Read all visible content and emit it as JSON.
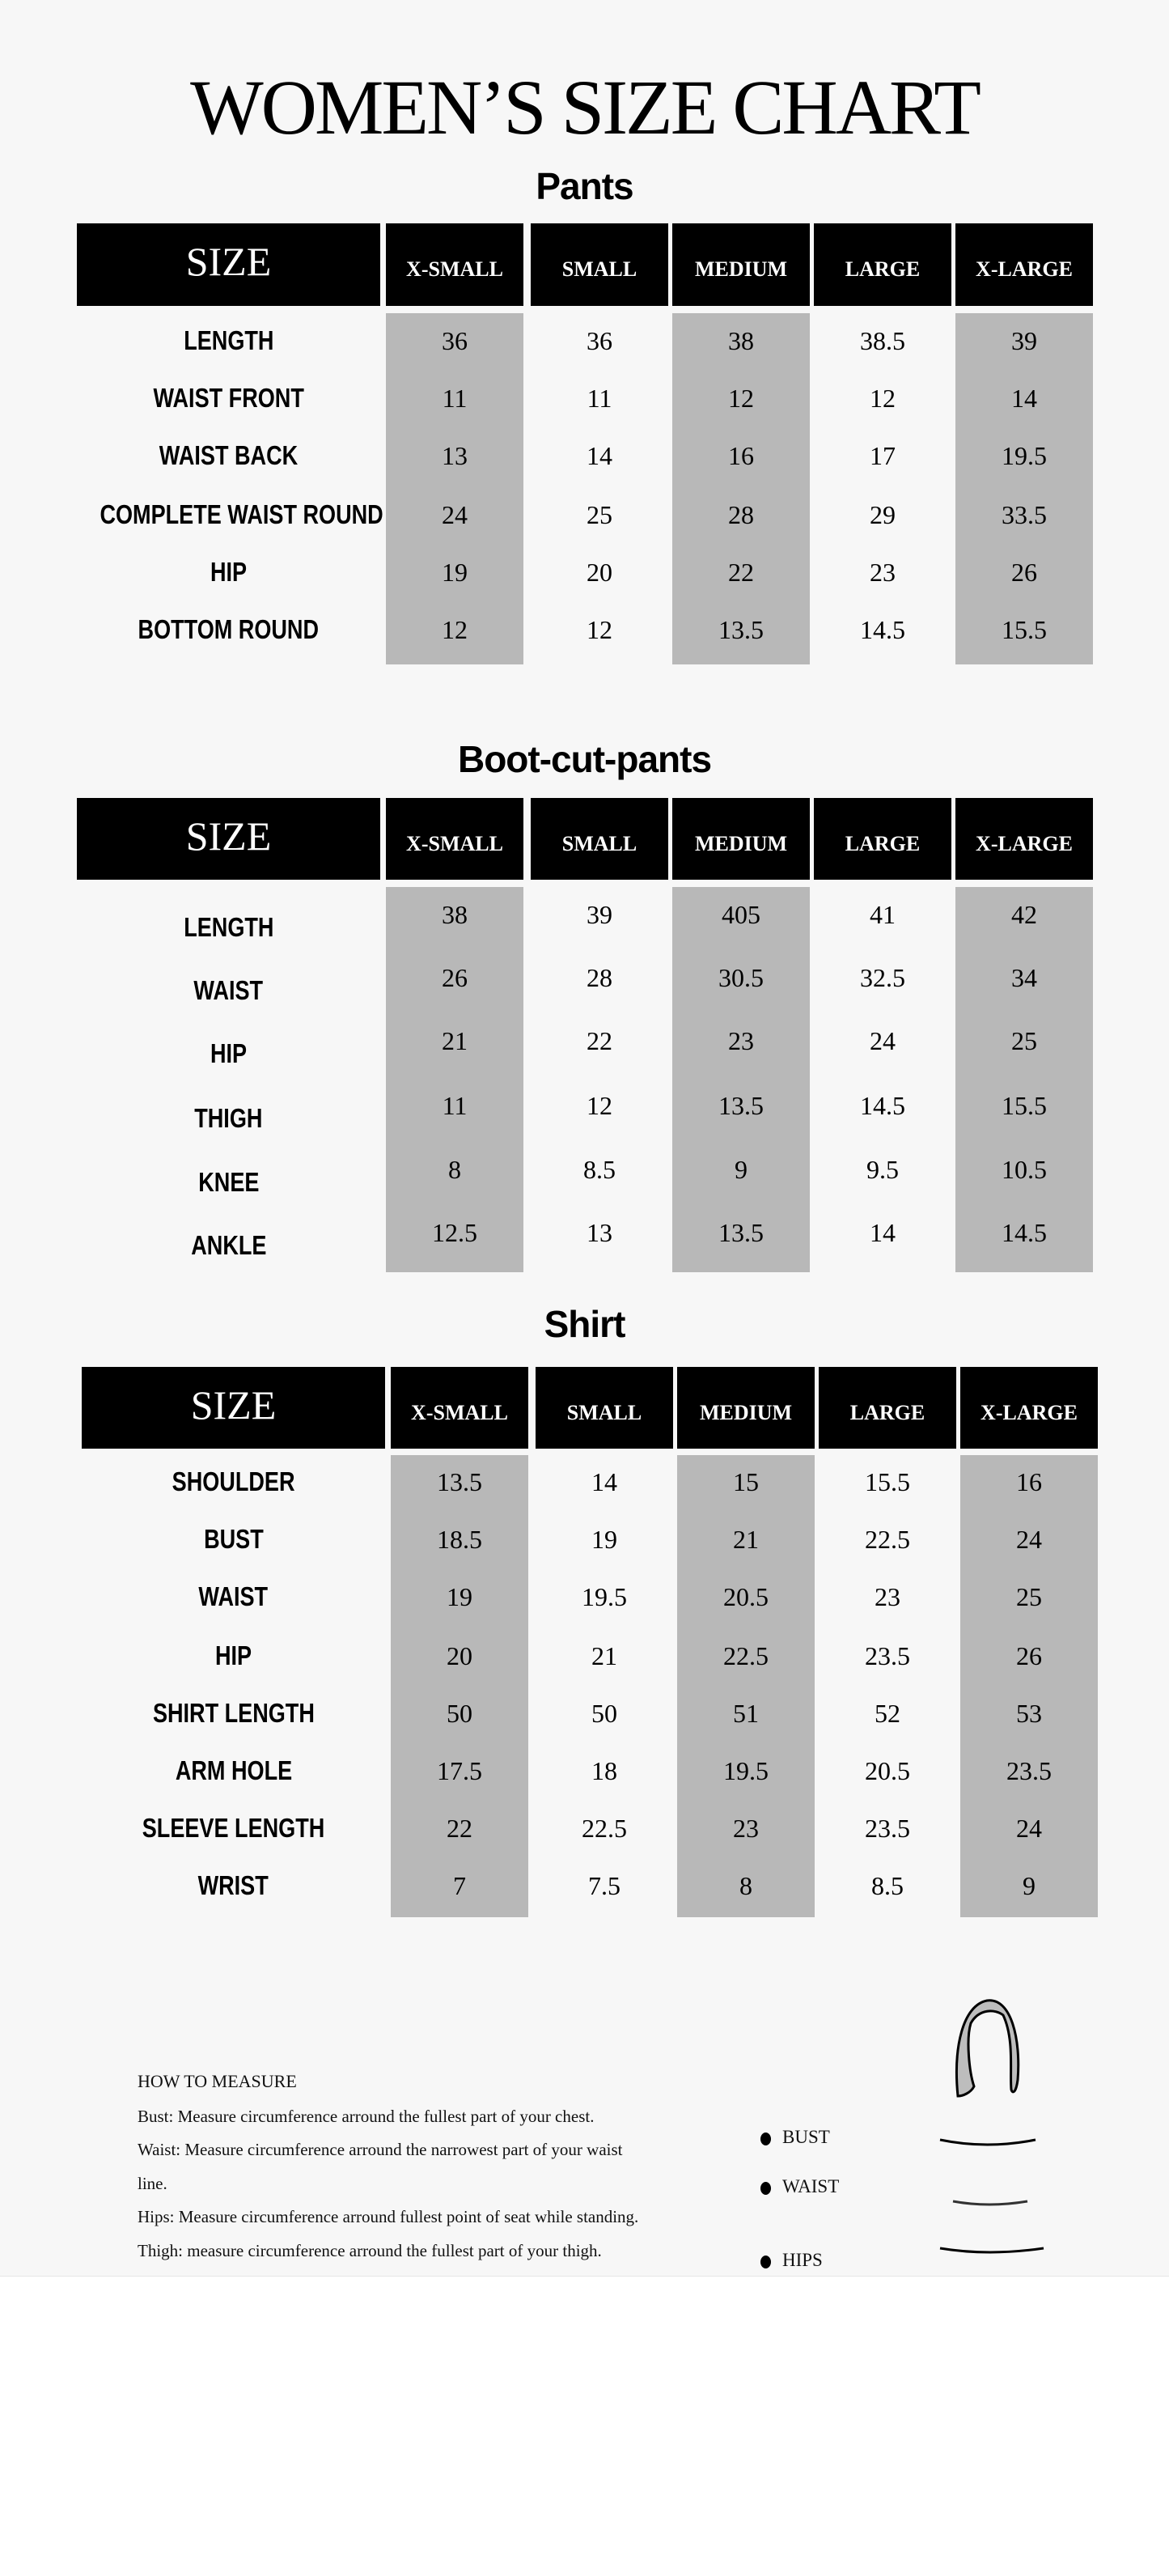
{
  "title": "WOMEN’S SIZE CHART",
  "size_header": "SIZE",
  "columns": [
    "X-SMALL",
    "SMALL",
    "MEDIUM",
    "LARGE",
    "X-LARGE"
  ],
  "colors": {
    "header_bg": "#000000",
    "header_text": "#ffffff",
    "shaded_column": "#b8b8b8",
    "background": "#f7f7f7"
  },
  "tables": [
    {
      "title": "Pants",
      "rows": [
        {
          "label": "LENGTH",
          "values": [
            "36",
            "36",
            "38",
            "38.5",
            "39"
          ]
        },
        {
          "label": "WAIST FRONT",
          "values": [
            "11",
            "11",
            "12",
            "12",
            "14"
          ]
        },
        {
          "label": "WAIST BACK",
          "values": [
            "13",
            "14",
            "16",
            "17",
            "19.5"
          ]
        },
        {
          "label": "COMPLETE WAIST ROUND",
          "values": [
            "24",
            "25",
            "28",
            "29",
            "33.5"
          ]
        },
        {
          "label": "HIP",
          "values": [
            "19",
            "20",
            "22",
            "23",
            "26"
          ]
        },
        {
          "label": "BOTTOM ROUND",
          "values": [
            "12",
            "12",
            "13.5",
            "14.5",
            "15.5"
          ]
        }
      ]
    },
    {
      "title": "Boot-cut-pants",
      "rows": [
        {
          "label": "LENGTH",
          "values": [
            "38",
            "39",
            "405",
            "41",
            "42"
          ]
        },
        {
          "label": "WAIST",
          "values": [
            "26",
            "28",
            "30.5",
            "32.5",
            "34"
          ]
        },
        {
          "label": "HIP",
          "values": [
            "21",
            "22",
            "23",
            "24",
            "25"
          ]
        },
        {
          "label": "THIGH",
          "values": [
            "11",
            "12",
            "13.5",
            "14.5",
            "15.5"
          ]
        },
        {
          "label": "KNEE",
          "values": [
            "8",
            "8.5",
            "9",
            "9.5",
            "10.5"
          ]
        },
        {
          "label": "ANKLE",
          "values": [
            "12.5",
            "13",
            "13.5",
            "14",
            "14.5"
          ]
        }
      ]
    },
    {
      "title": "Shirt",
      "rows": [
        {
          "label": "SHOULDER",
          "values": [
            "13.5",
            "14",
            "15",
            "15.5",
            "16"
          ]
        },
        {
          "label": "BUST",
          "values": [
            "18.5",
            "19",
            "21",
            "22.5",
            "24"
          ]
        },
        {
          "label": "WAIST",
          "values": [
            "19",
            "19.5",
            "20.5",
            "23",
            "25"
          ]
        },
        {
          "label": "HIP",
          "values": [
            "20",
            "21",
            "22.5",
            "23.5",
            "26"
          ]
        },
        {
          "label": "SHIRT LENGTH",
          "values": [
            "50",
            "50",
            "51",
            "52",
            "53"
          ]
        },
        {
          "label": "ARM HOLE",
          "values": [
            "17.5",
            "18",
            "19.5",
            "20.5",
            "23.5"
          ]
        },
        {
          "label": "SLEEVE LENGTH",
          "values": [
            "22",
            "22.5",
            "23",
            "23.5",
            "24"
          ]
        },
        {
          "label": "WRIST",
          "values": [
            "7",
            "7.5",
            "8",
            "8.5",
            "9"
          ]
        }
      ]
    }
  ],
  "how_to_measure": {
    "heading": "HOW TO MEASURE",
    "lines": [
      "Bust: Measure circumference arround the fullest part of your chest.",
      "Waist: Measure circumference arround the narrowest part of your waist",
      "line.",
      "Hips: Measure circumference arround fullest point of seat while standing.",
      "Thigh: measure circumference arround the fullest part of your thigh."
    ],
    "figure_labels": [
      "BUST",
      "WAIST",
      "HIPS"
    ]
  }
}
